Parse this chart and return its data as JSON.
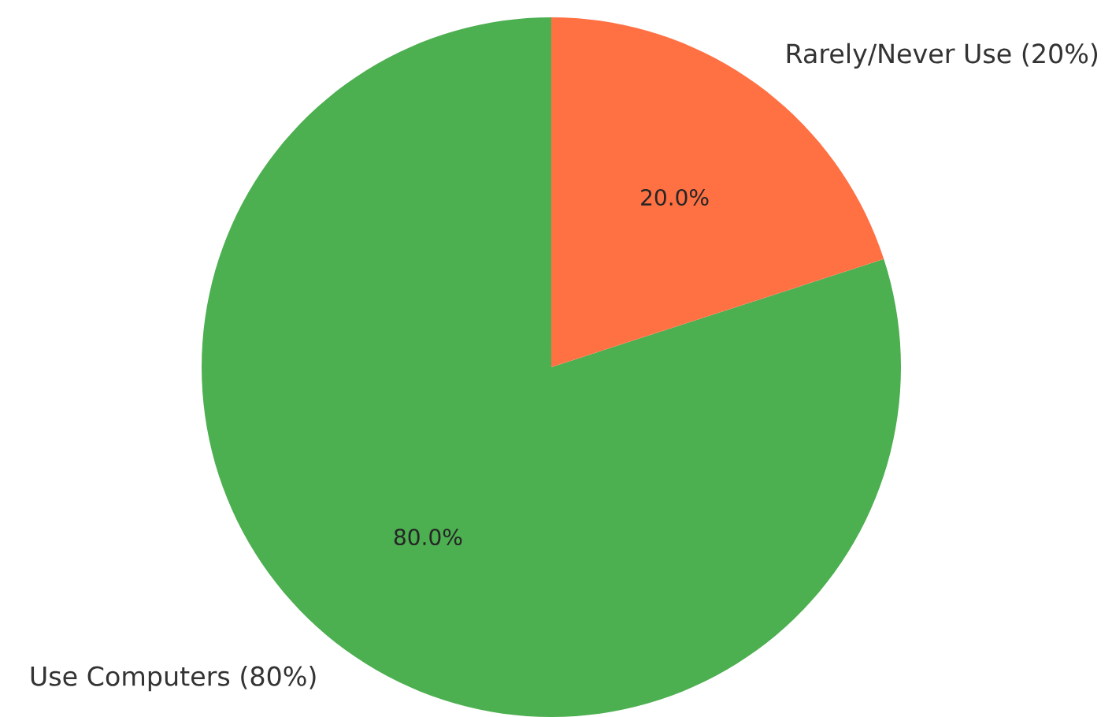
{
  "chart_data": {
    "type": "pie",
    "categories": [
      "Use Computers (80%)",
      "Rarely/Never Use (20%)"
    ],
    "values": [
      80,
      20
    ],
    "colors": [
      "#4caf50",
      "#ff7043"
    ],
    "value_labels": [
      "80.0%",
      "20.0%"
    ]
  }
}
